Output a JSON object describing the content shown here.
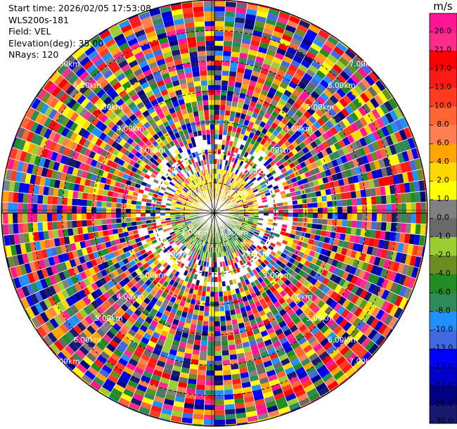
{
  "info": {
    "start_time": "Start time: 2026/02/05 17:53:08",
    "instrument": "WLS200s-181",
    "field": "Field: VEL",
    "elevation": "Elevation(deg): 35.00",
    "nrays": "NRays: 120"
  },
  "chart_data": {
    "type": "heatmap",
    "projection": "polar-ppi",
    "rings": [
      "1.00km",
      "2.00km",
      "3.00km",
      "4.00km",
      "5.00km",
      "6.00km",
      "7.00km"
    ],
    "nrays": 120,
    "colorbar": {
      "unit": "m/s",
      "ticks": [
        "26.0",
        "21.0",
        "17.0",
        "13.0",
        "10.0",
        "8.0",
        "6.0",
        "4.0",
        "2.0",
        "1.0",
        "0.0",
        "-1.0",
        "-2.0",
        "-4.0",
        "-6.0",
        "-8.0",
        "-10.0",
        "-13.0",
        "-17.0",
        "-21.0",
        "-26.0",
        "-30.0"
      ],
      "colors": [
        "#ff1493",
        "#ff2d8a",
        "#ff0000",
        "#ff1a1a",
        "#ff3c1e",
        "#ff6633",
        "#ff7f50",
        "#ffa500",
        "#ffd700",
        "#ffff00",
        "#808080",
        "#696969",
        "#9acd32",
        "#6b8e23",
        "#228b22",
        "#2e8b57",
        "#1e90ff",
        "#4169e1",
        "#0000ff",
        "#0000cd",
        "#000080",
        "#191970"
      ]
    }
  }
}
